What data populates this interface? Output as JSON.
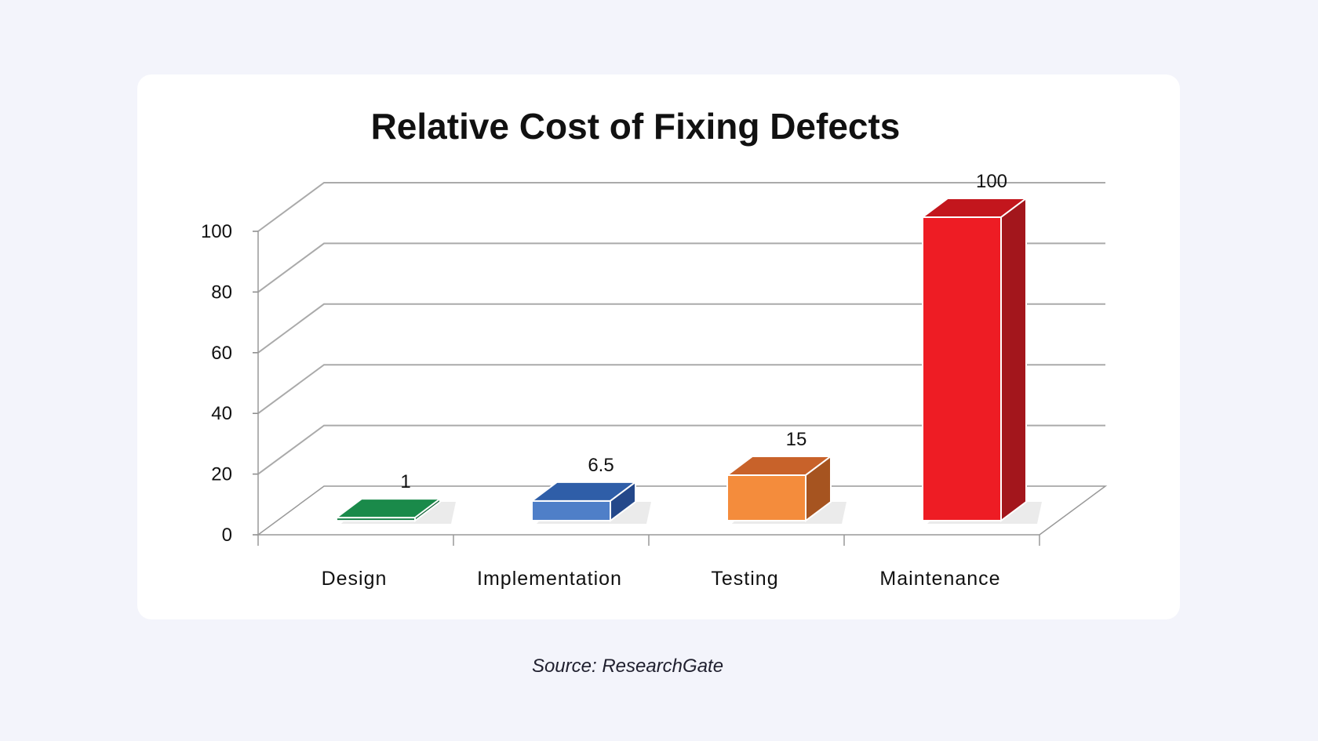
{
  "chart_data": {
    "type": "bar",
    "style": "3d-column",
    "title": "Relative Cost of Fixing Defects",
    "categories": [
      "Design",
      "Implementation",
      "Testing",
      "Maintenance"
    ],
    "values": [
      1,
      6.5,
      15,
      100
    ],
    "data_labels": [
      "1",
      "6.5",
      "15",
      "100"
    ],
    "ylim": [
      0,
      100
    ],
    "yticks": [
      "0",
      "20",
      "40",
      "60",
      "80",
      "100"
    ],
    "grid": true,
    "legend": "none",
    "colors": [
      {
        "front": "#0e7a3f",
        "top": "#1a8a4a",
        "side": "#0b5e30"
      },
      {
        "front": "#4f7fc8",
        "top": "#2f5ea8",
        "side": "#24488a"
      },
      {
        "front": "#f48c3c",
        "top": "#c8622a",
        "side": "#a65420"
      },
      {
        "front": "#ee1c24",
        "top": "#c3161d",
        "side": "#a3161c"
      }
    ]
  },
  "caption": "Source: ResearchGate"
}
